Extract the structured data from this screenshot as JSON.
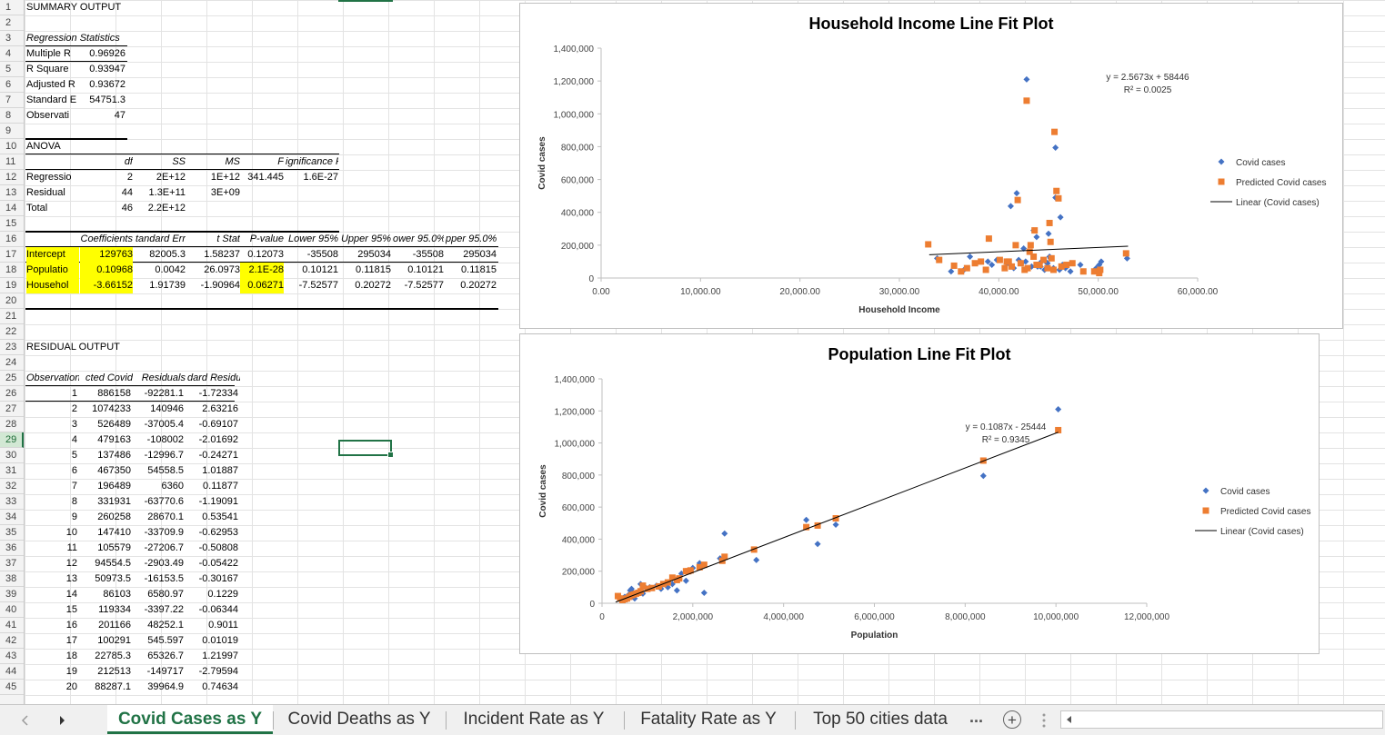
{
  "row_numbers": [
    "1",
    "2",
    "3",
    "4",
    "5",
    "6",
    "7",
    "8",
    "9",
    "10",
    "11",
    "12",
    "13",
    "14",
    "15",
    "16",
    "17",
    "18",
    "19",
    "20",
    "21",
    "22",
    "23",
    "24",
    "25",
    "26",
    "27",
    "28",
    "29",
    "30",
    "31",
    "32",
    "33",
    "34",
    "35",
    "36",
    "37",
    "38",
    "39",
    "40",
    "41",
    "42",
    "43",
    "44",
    "45"
  ],
  "selected_row": 29,
  "summary": {
    "title": "SUMMARY OUTPUT",
    "regression_stats_header": "Regression Statistics",
    "stats": [
      {
        "label": "Multiple R",
        "value": "0.96926"
      },
      {
        "label": "R Square",
        "value": "0.93947"
      },
      {
        "label": "Adjusted R",
        "value": "0.93672"
      },
      {
        "label": "Standard E",
        "value": "54751.3"
      },
      {
        "label": "Observati",
        "value": "47"
      }
    ]
  },
  "anova": {
    "title": "ANOVA",
    "headers": [
      "df",
      "SS",
      "MS",
      "F",
      "ignificance F"
    ],
    "rows": [
      {
        "label": "Regressio",
        "cells": [
          "2",
          "2E+12",
          "1E+12",
          "341.445",
          "1.6E-27"
        ]
      },
      {
        "label": "Residual",
        "cells": [
          "44",
          "1.3E+11",
          "3E+09",
          "",
          ""
        ]
      },
      {
        "label": "Total",
        "cells": [
          "46",
          "2.2E+12",
          "",
          "",
          ""
        ]
      }
    ]
  },
  "coefficients": {
    "headers": [
      "Coefficients",
      "tandard Err",
      "t Stat",
      "P-value",
      "Lower 95%",
      "Upper 95%",
      "ower 95.0%",
      "pper 95.0%"
    ],
    "rows": [
      {
        "label": "Intercept",
        "cells": [
          "129763",
          "82005.3",
          "1.58237",
          "0.12073",
          "-35508",
          "295034",
          "-35508",
          "295034"
        ]
      },
      {
        "label": "Populatio",
        "cells": [
          "0.10968",
          "0.0042",
          "26.0973",
          "2.1E-28",
          "0.10121",
          "0.11815",
          "0.10121",
          "0.11815"
        ]
      },
      {
        "label": "Househol",
        "cells": [
          "-3.66152",
          "1.91739",
          "-1.90964",
          "0.06271",
          "-7.52577",
          "0.20272",
          "-7.52577",
          "0.20272"
        ]
      }
    ]
  },
  "residual": {
    "title": "RESIDUAL OUTPUT",
    "headers": [
      "Observation",
      "cted Covid",
      "Residuals",
      "dard Residuals"
    ],
    "rows": [
      [
        "1",
        "886158",
        "-92281.1",
        "-1.72334"
      ],
      [
        "2",
        "1074233",
        "140946",
        "2.63216"
      ],
      [
        "3",
        "526489",
        "-37005.4",
        "-0.69107"
      ],
      [
        "4",
        "479163",
        "-108002",
        "-2.01692"
      ],
      [
        "5",
        "137486",
        "-12996.7",
        "-0.24271"
      ],
      [
        "6",
        "467350",
        "54558.5",
        "1.01887"
      ],
      [
        "7",
        "196489",
        "6360",
        "0.11877"
      ],
      [
        "8",
        "331931",
        "-63770.6",
        "-1.19091"
      ],
      [
        "9",
        "260258",
        "28670.1",
        "0.53541"
      ],
      [
        "10",
        "147410",
        "-33709.9",
        "-0.62953"
      ],
      [
        "11",
        "105579",
        "-27206.7",
        "-0.50808"
      ],
      [
        "12",
        "94554.5",
        "-2903.49",
        "-0.05422"
      ],
      [
        "13",
        "50973.5",
        "-16153.5",
        "-0.30167"
      ],
      [
        "14",
        "86103",
        "6580.97",
        "0.1229"
      ],
      [
        "15",
        "119334",
        "-3397.22",
        "-0.06344"
      ],
      [
        "16",
        "201166",
        "48252.1",
        "0.9011"
      ],
      [
        "17",
        "100291",
        "545.597",
        "0.01019"
      ],
      [
        "18",
        "22785.3",
        "65326.7",
        "1.21997"
      ],
      [
        "19",
        "212513",
        "-149717",
        "-2.79594"
      ],
      [
        "20",
        "88287.1",
        "39964.9",
        "0.74634"
      ]
    ]
  },
  "chart_data": [
    {
      "type": "scatter",
      "title": "Household Income Line Fit  Plot",
      "xlabel": "Household Income",
      "ylabel": "Covid cases",
      "xlim": [
        0,
        60000
      ],
      "ylim": [
        0,
        1400000
      ],
      "x_ticks": [
        "0.00",
        "10,000.00",
        "20,000.00",
        "30,000.00",
        "40,000.00",
        "50,000.00",
        "60,000.00"
      ],
      "y_ticks": [
        "0",
        "200,000",
        "400,000",
        "600,000",
        "800,000",
        "1,000,000",
        "1,200,000",
        "1,400,000"
      ],
      "legend": "right",
      "legend_entries": [
        "Covid cases",
        "Predicted Covid cases",
        "Linear (Covid cases)"
      ],
      "trendline_label": [
        "y = 2.5673x + 58446",
        "R² = 0.0025"
      ],
      "trendline": {
        "x": [
          33000,
          53000
        ],
        "y": [
          142000,
          194000
        ]
      },
      "series": [
        {
          "name": "Covid cases",
          "color": "#4472c4",
          "marker": "diamond",
          "x": [
            42800,
            45700,
            41200,
            45700,
            41800,
            46200,
            43500,
            43800,
            45000,
            42500,
            44300,
            43800,
            45200,
            44700,
            41000,
            46400,
            38900,
            36500,
            50100,
            52900,
            33800,
            37100,
            39800,
            42300,
            44200,
            45500,
            46100,
            35200,
            42700,
            43300,
            41500,
            44600,
            47200,
            49800,
            50300,
            45100,
            39300,
            40800,
            43900,
            42000,
            44900,
            46700,
            48200
          ],
          "y": [
            1210000,
            794000,
            438000,
            490000,
            517000,
            370000,
            290000,
            250000,
            270000,
            180000,
            100000,
            80000,
            120000,
            100000,
            90000,
            80000,
            100000,
            50000,
            80000,
            120000,
            120000,
            130000,
            110000,
            90000,
            70000,
            60000,
            50000,
            40000,
            100000,
            70000,
            60000,
            50000,
            40000,
            60000,
            100000,
            130000,
            80000,
            90000,
            70000,
            110000,
            90000,
            60000,
            80000
          ]
        },
        {
          "name": "Predicted Covid cases",
          "color": "#ed7d31",
          "marker": "square",
          "x": [
            42800,
            45600,
            45800,
            46000,
            41900,
            45100,
            43600,
            39000,
            45200,
            43200,
            41700,
            43100,
            32900,
            34000,
            35500,
            36800,
            38700,
            40100,
            41000,
            42200,
            43800,
            44500,
            45500,
            47400,
            49600,
            50100,
            52800,
            36200,
            40600,
            44100,
            46300,
            38200,
            42600,
            44900,
            48500,
            37600,
            40800,
            41300,
            42900,
            45300,
            50200,
            43500,
            46800
          ],
          "y": [
            1080000,
            890000,
            530000,
            485000,
            475000,
            335000,
            290000,
            240000,
            220000,
            200000,
            200000,
            160000,
            205000,
            110000,
            75000,
            60000,
            50000,
            110000,
            100000,
            90000,
            80000,
            110000,
            50000,
            90000,
            40000,
            30000,
            150000,
            40000,
            60000,
            80000,
            70000,
            100000,
            50000,
            60000,
            40000,
            90000,
            100000,
            70000,
            60000,
            120000,
            50000,
            130000,
            80000
          ]
        }
      ]
    },
    {
      "type": "scatter",
      "title": "Population Line Fit  Plot",
      "xlabel": "Population",
      "ylabel": "Covid cases",
      "xlim": [
        0,
        12000000
      ],
      "ylim": [
        0,
        1400000
      ],
      "x_ticks": [
        "0",
        "2,000,000",
        "4,000,000",
        "6,000,000",
        "8,000,000",
        "10,000,000",
        "12,000,000"
      ],
      "y_ticks": [
        "0",
        "200,000",
        "400,000",
        "600,000",
        "800,000",
        "1,000,000",
        "1,200,000",
        "1,400,000"
      ],
      "legend": "right",
      "legend_entries": [
        "Covid cases",
        "Predicted Covid cases",
        "Linear (Covid cases)"
      ],
      "trendline_label": [
        "y = 0.1087x - 25444",
        "R² = 0.9345"
      ],
      "trendline": {
        "x": [
          300000,
          10050000
        ],
        "y": [
          7000,
          1067000
        ]
      },
      "series": [
        {
          "name": "Covid cases",
          "color": "#4472c4",
          "marker": "diamond",
          "x": [
            10050000,
            8400000,
            5150000,
            4500000,
            4750000,
            2700000,
            3400000,
            2150000,
            2250000,
            1750000,
            1450000,
            1550000,
            1650000,
            1200000,
            950000,
            850000,
            800000,
            750000,
            700000,
            650000,
            600000,
            550000,
            500000,
            620000,
            900000,
            1050000,
            1300000,
            1850000,
            2000000,
            2600000,
            720000,
            580000,
            680000
          ],
          "y": [
            1210000,
            795000,
            490000,
            520000,
            370000,
            435000,
            270000,
            250000,
            65000,
            185000,
            100000,
            120000,
            80000,
            110000,
            100000,
            120000,
            70000,
            60000,
            50000,
            90000,
            40000,
            30000,
            40000,
            80000,
            60000,
            100000,
            90000,
            140000,
            220000,
            280000,
            30000,
            50000,
            70000
          ]
        },
        {
          "name": "Predicted Covid cases",
          "color": "#ed7d31",
          "marker": "square",
          "x": [
            10050000,
            8400000,
            5150000,
            4750000,
            4500000,
            3350000,
            2700000,
            2650000,
            2150000,
            1950000,
            1900000,
            1850000,
            1700000,
            1550000,
            1450000,
            1350000,
            1250000,
            1100000,
            1000000,
            900000,
            850000,
            800000,
            750000,
            700000,
            650000,
            600000,
            550000,
            500000,
            450000,
            400000,
            350000,
            1650000,
            2250000
          ],
          "y": [
            1080000,
            890000,
            530000,
            485000,
            475000,
            335000,
            290000,
            265000,
            225000,
            205000,
            200000,
            200000,
            155000,
            160000,
            130000,
            120000,
            105000,
            95000,
            90000,
            110000,
            75000,
            65000,
            60000,
            55000,
            50000,
            40000,
            30000,
            25000,
            20000,
            30000,
            45000,
            145000,
            240000
          ]
        }
      ]
    }
  ],
  "tabs": {
    "sheets": [
      "Covid Cases as Y",
      "Covid Deaths as Y",
      "Incident Rate as Y",
      "Fatality Rate as Y",
      "Top 50 cities data"
    ],
    "active_index": 0,
    "ellipsis": "...",
    "add_symbol": "+"
  },
  "colors": {
    "accent": "#217346",
    "highlight": "#ffff00",
    "series_blue": "#4472c4",
    "series_orange": "#ed7d31"
  }
}
